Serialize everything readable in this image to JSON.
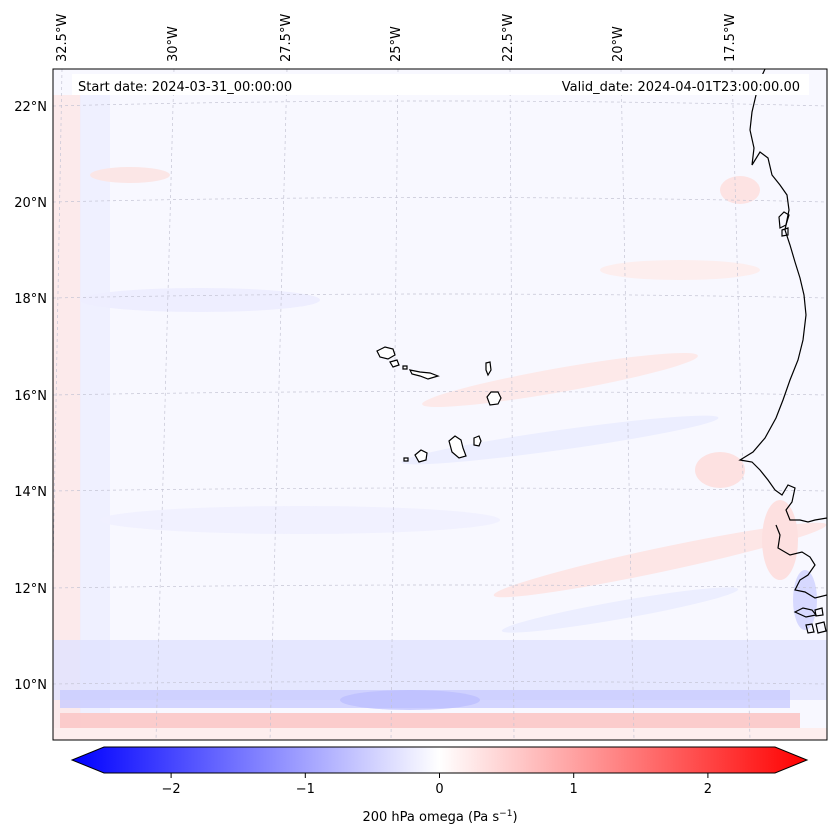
{
  "map": {
    "start_date": "Start date: 2024-03-31_00:00:00",
    "valid_date": "Valid_date: 2024-04-01T23:00:00.00",
    "lon_labels": [
      "32.5°W",
      "30°W",
      "27.5°W",
      "25°W",
      "22.5°W",
      "20°W",
      "17.5°W"
    ],
    "lat_labels": [
      "22°N",
      "20°N",
      "18°N",
      "16°N",
      "14°N",
      "12°N",
      "10°N"
    ],
    "region": "Cape Verde Islands and West African coast",
    "field": "200 hPa omega"
  },
  "colorbar": {
    "label": "200 hPa omega (Pa s",
    "label_sup": "−1",
    "label_end": ")",
    "ticks": [
      "−2",
      "−1",
      "0",
      "1",
      "2"
    ],
    "tick_values": [
      -2,
      -1,
      0,
      1,
      2
    ],
    "vmin": -2.7,
    "vmax": 2.7,
    "colormap": "bwr",
    "color_low": "#0000ff",
    "color_mid": "#ffffff",
    "color_high": "#ff0000"
  },
  "colors": {
    "background": "#f7f7ff",
    "coastline": "#000000",
    "gridline": "#b8b8c8"
  }
}
